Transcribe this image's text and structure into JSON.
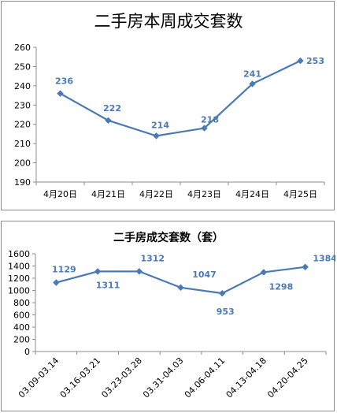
{
  "colors": {
    "line": "#4a7ab5",
    "label": "#4a7ab5",
    "axis": "#8c8c8c"
  },
  "chart_data": [
    {
      "type": "line",
      "title": "二手房本周成交套数",
      "categories": [
        "4月20日",
        "4月21日",
        "4月22日",
        "4月23日",
        "4月24日",
        "4月25日"
      ],
      "values": [
        236,
        222,
        214,
        218,
        241,
        253
      ],
      "ylim": [
        190,
        260
      ],
      "yticks": [
        "190",
        "200",
        "210",
        "220",
        "230",
        "240",
        "250",
        "260"
      ],
      "grid": false,
      "marker": "diamond"
    },
    {
      "type": "line",
      "title": "二手房成交套数（套）",
      "categories": [
        "03.09-03.14",
        "03.16-03.21",
        "03.23-03.28",
        "03.31-04.03",
        "04.06-04.11",
        "04.13-04.18",
        "04.20-04.25"
      ],
      "values": [
        1129,
        1311,
        1312,
        1047,
        953,
        1298,
        1384
      ],
      "ylim": [
        0,
        1600
      ],
      "yticks": [
        "0",
        "200",
        "400",
        "600",
        "800",
        "1000",
        "1200",
        "1400",
        "1600"
      ],
      "grid": false,
      "marker": "diamond"
    }
  ]
}
